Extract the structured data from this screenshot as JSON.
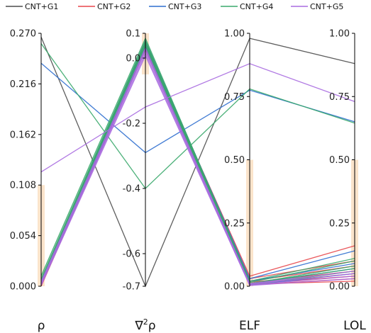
{
  "chart_data": {
    "type": "parallel-coordinates",
    "axes": [
      {
        "label": "ρ",
        "range": [
          0,
          0.27
        ],
        "ticks": [
          "0.000",
          "0.054",
          "0.108",
          "0.162",
          "0.216",
          "0.270"
        ],
        "tick_values": [
          0,
          0.054,
          0.108,
          0.162,
          0.216,
          0.27
        ]
      },
      {
        "label": "∇²ρ",
        "label_base": "∇",
        "label_sup": "2",
        "label_tail": "ρ",
        "range": [
          -0.7,
          0.1
        ],
        "ticks": [
          "-0.7",
          "-0.6",
          "-0.4",
          "-0.2",
          "0.0",
          "0.1"
        ],
        "tick_values": [
          -0.7,
          -0.6,
          -0.4,
          -0.2,
          0.0,
          0.1
        ]
      },
      {
        "label": "ELF",
        "range": [
          0,
          1
        ],
        "ticks": [
          "0.00",
          "0.25",
          "0.50",
          "0.75",
          "1.00"
        ],
        "tick_values": [
          0,
          0.25,
          0.5,
          0.75,
          1.0
        ]
      },
      {
        "label": "LOL",
        "range": [
          0,
          1
        ],
        "ticks": [
          "0.00",
          "0.25",
          "0.50",
          "0.75",
          "1.00"
        ],
        "tick_values": [
          0,
          0.25,
          0.5,
          0.75,
          1.0
        ]
      }
    ],
    "highlights": [
      {
        "axis": 0,
        "range": [
          0,
          0.108
        ]
      },
      {
        "axis": 1,
        "range": [
          -0.05,
          0.1
        ]
      },
      {
        "axis": 2,
        "range": [
          0,
          0.5
        ]
      },
      {
        "axis": 3,
        "range": [
          0,
          0.5
        ]
      }
    ],
    "series": [
      {
        "name": "CNT+G1",
        "color": "#4d4d4d",
        "lines": [
          [
            0.266,
            -0.7,
            0.98,
            0.88
          ]
        ]
      },
      {
        "name": "CNT+G2",
        "color": "#e8474b",
        "lines": [
          [
            0.004,
            0.06,
            0.04,
            0.16
          ],
          [
            0.002,
            0.05,
            0.03,
            0.1
          ],
          [
            0.003,
            0.055,
            0.02,
            0.08
          ],
          [
            0.001,
            0.05,
            0.015,
            0.06
          ],
          [
            0.002,
            0.045,
            0.01,
            0.05
          ],
          [
            0.001,
            0.04,
            0.01,
            0.04
          ],
          [
            0.0,
            0.035,
            0.005,
            0.03
          ],
          [
            0.001,
            0.05,
            0.008,
            0.02
          ]
        ]
      },
      {
        "name": "CNT+G3",
        "color": "#2f6fcf",
        "lines": [
          [
            0.238,
            -0.29,
            0.775,
            0.65
          ],
          [
            0.006,
            0.07,
            0.03,
            0.14
          ],
          [
            0.004,
            0.06,
            0.02,
            0.09
          ],
          [
            0.003,
            0.05,
            0.01,
            0.07
          ],
          [
            0.002,
            0.04,
            0.005,
            0.05
          ]
        ]
      },
      {
        "name": "CNT+G4",
        "color": "#3aa86b",
        "lines": [
          [
            0.259,
            -0.4,
            0.78,
            0.645
          ],
          [
            0.011,
            0.08,
            0.02,
            0.11
          ],
          [
            0.008,
            0.07,
            0.015,
            0.1
          ],
          [
            0.006,
            0.065,
            0.01,
            0.08
          ],
          [
            0.004,
            0.06,
            0.01,
            0.07
          ],
          [
            0.003,
            0.05,
            0.005,
            0.06
          ]
        ]
      },
      {
        "name": "CNT+G5",
        "color": "#a86be0",
        "lines": [
          [
            0.122,
            -0.15,
            0.88,
            0.73
          ],
          [
            0.005,
            0.04,
            0.01,
            0.06
          ],
          [
            0.003,
            0.03,
            0.008,
            0.05
          ],
          [
            0.002,
            0.02,
            0.005,
            0.04
          ],
          [
            0.001,
            0.01,
            0.003,
            0.03
          ]
        ]
      }
    ],
    "legend_position": "top"
  }
}
